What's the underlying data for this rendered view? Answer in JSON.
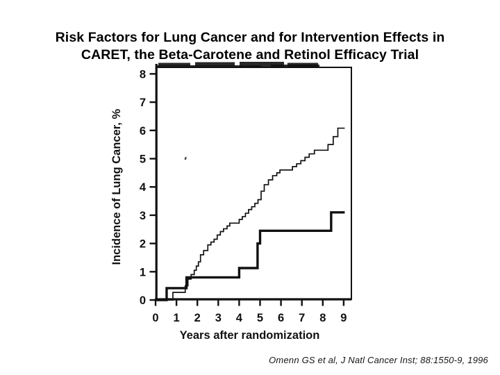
{
  "slide": {
    "title_line1": "Risk Factors for Lung Cancer and for Intervention Effects in",
    "title_line2": "CARET, the Beta-Carotene and Retinol Efficacy Trial",
    "citation": "Omenn GS et al, J Natl Cancer Inst; 88:1550-9, 1996"
  },
  "colors": {
    "ink": "#111111",
    "background": "#ffffff"
  },
  "chart_data": {
    "type": "line",
    "subtype": "step-after",
    "title": "",
    "xlabel": "Years after randomization",
    "ylabel": "Incidence of Lung Cancer, %",
    "xlim": [
      0,
      9.35
    ],
    "ylim": [
      0,
      8.25
    ],
    "x_ticks": [
      0,
      1,
      2,
      3,
      4,
      5,
      6,
      7,
      8,
      9
    ],
    "y_ticks": [
      0,
      1,
      2,
      3,
      4,
      5,
      6,
      7,
      8
    ],
    "grid": false,
    "legend_position": "none (legend cropped out of scanned figure)",
    "series": [
      {
        "name": "upper-thin-step-curve",
        "line_width": "thin",
        "end_x": 9.05,
        "points": [
          [
            0,
            0
          ],
          [
            0.83,
            0.27
          ],
          [
            1.42,
            0.5
          ],
          [
            1.55,
            0.74
          ],
          [
            1.7,
            0.9
          ],
          [
            1.85,
            1.05
          ],
          [
            1.95,
            1.2
          ],
          [
            2.05,
            1.35
          ],
          [
            2.15,
            1.6
          ],
          [
            2.3,
            1.75
          ],
          [
            2.5,
            1.95
          ],
          [
            2.65,
            2.05
          ],
          [
            2.8,
            2.15
          ],
          [
            2.95,
            2.3
          ],
          [
            3.1,
            2.42
          ],
          [
            3.25,
            2.52
          ],
          [
            3.42,
            2.62
          ],
          [
            3.55,
            2.72
          ],
          [
            4.0,
            2.85
          ],
          [
            4.15,
            2.95
          ],
          [
            4.3,
            3.07
          ],
          [
            4.45,
            3.2
          ],
          [
            4.6,
            3.3
          ],
          [
            4.75,
            3.42
          ],
          [
            4.9,
            3.55
          ],
          [
            5.05,
            3.85
          ],
          [
            5.2,
            4.08
          ],
          [
            5.4,
            4.25
          ],
          [
            5.6,
            4.4
          ],
          [
            5.8,
            4.5
          ],
          [
            5.95,
            4.6
          ],
          [
            6.55,
            4.72
          ],
          [
            6.75,
            4.82
          ],
          [
            6.95,
            4.93
          ],
          [
            7.15,
            5.05
          ],
          [
            7.35,
            5.17
          ],
          [
            7.6,
            5.3
          ],
          [
            8.25,
            5.5
          ],
          [
            8.5,
            5.78
          ],
          [
            8.72,
            6.08
          ]
        ]
      },
      {
        "name": "lower-thick-step-curve",
        "line_width": "thick",
        "end_x": 9.05,
        "points": [
          [
            0,
            0
          ],
          [
            0.53,
            0.42
          ],
          [
            1.48,
            0.8
          ],
          [
            4.0,
            1.13
          ],
          [
            4.88,
            2.0
          ],
          [
            5.0,
            2.45
          ],
          [
            8.4,
            3.1
          ]
        ]
      }
    ]
  }
}
